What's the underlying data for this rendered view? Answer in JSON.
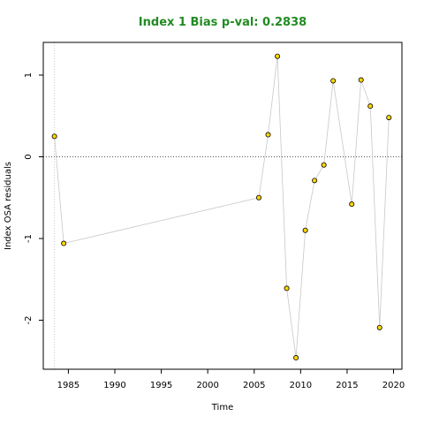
{
  "chart_data": {
    "type": "scatter",
    "title": "Index 1 Bias p-val: 0.2838",
    "title_color": "#228B22",
    "xlabel": "Time",
    "ylabel": "Index OSA residuals",
    "xlim": [
      1982.3,
      2020.9
    ],
    "ylim": [
      -2.6,
      1.4
    ],
    "x_ticks": [
      1985,
      1990,
      1995,
      2000,
      2005,
      2010,
      2015,
      2020
    ],
    "y_ticks": [
      -2,
      -1,
      0,
      1
    ],
    "reference_line_y": 0,
    "vertical_guide_x": 1983.5,
    "grid": false,
    "point_color": "#FFD700",
    "line_color": "#C8C8C8",
    "series": [
      {
        "x": [
          1983.5,
          1984.5,
          2005.5,
          2006.5,
          2007.5,
          2008.5,
          2009.5,
          2010.5,
          2011.5,
          2012.5,
          2013.5,
          2015.5,
          2016.5,
          2017.5,
          2018.5,
          2019.5
        ],
        "y": [
          0.25,
          -1.06,
          -0.5,
          0.27,
          1.23,
          -1.61,
          -2.46,
          -0.9,
          -0.29,
          -0.1,
          0.93,
          -0.58,
          0.94,
          0.62,
          -2.09,
          0.48
        ]
      }
    ]
  }
}
